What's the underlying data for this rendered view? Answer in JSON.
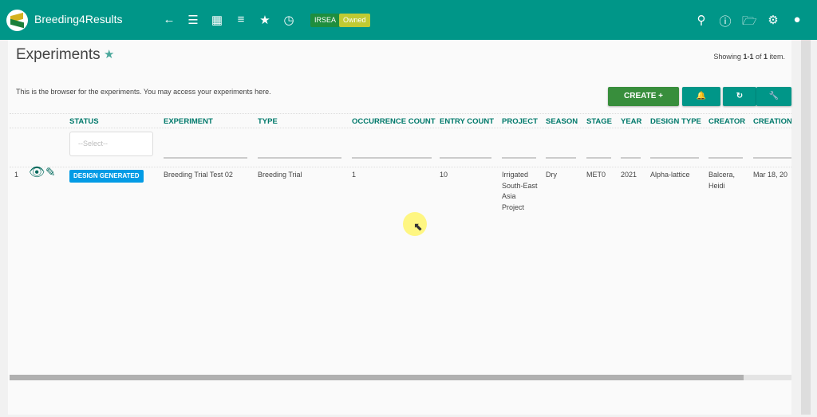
{
  "header": {
    "brand": "Breeding4Results",
    "program": "IRSEA",
    "owned": "Owned",
    "icons": [
      "arrow-back",
      "menu",
      "dashboard",
      "filter",
      "star",
      "history",
      "search",
      "help",
      "folder",
      "settings",
      "account"
    ]
  },
  "page": {
    "title": "Experiments",
    "showing_prefix": "Showing ",
    "showing_range": "1-1",
    "showing_mid": " of ",
    "showing_total": "1",
    "showing_suffix": " item.",
    "description": "This is the browser for the experiments. You may access your experiments here."
  },
  "toolbar": {
    "create_label": "CREATE +"
  },
  "table": {
    "columns": [
      "STATUS",
      "EXPERIMENT",
      "TYPE",
      "OCCURRENCE COUNT",
      "ENTRY COUNT",
      "PROJECT",
      "SEASON",
      "STAGE",
      "YEAR",
      "DESIGN TYPE",
      "CREATOR",
      "CREATION"
    ],
    "status_filter_placeholder": "--Select--",
    "rows": [
      {
        "num": "1",
        "status": "DESIGN GENERATED",
        "experiment": "Breeding Trial Test 02",
        "type": "Breeding Trial",
        "occurrence_count": "1",
        "entry_count": "10",
        "project": "Irrigated South-East Asia Project",
        "season": "Dry",
        "stage": "MET0",
        "year": "2021",
        "design_type": "Alpha-lattice",
        "creator": "Balcera, Heidi",
        "creation": "Mar 18, 20"
      }
    ]
  },
  "colors": {
    "header": "#009688",
    "create": "#388e3c",
    "status_badge": "#039be5",
    "column_header": "#00796b"
  }
}
